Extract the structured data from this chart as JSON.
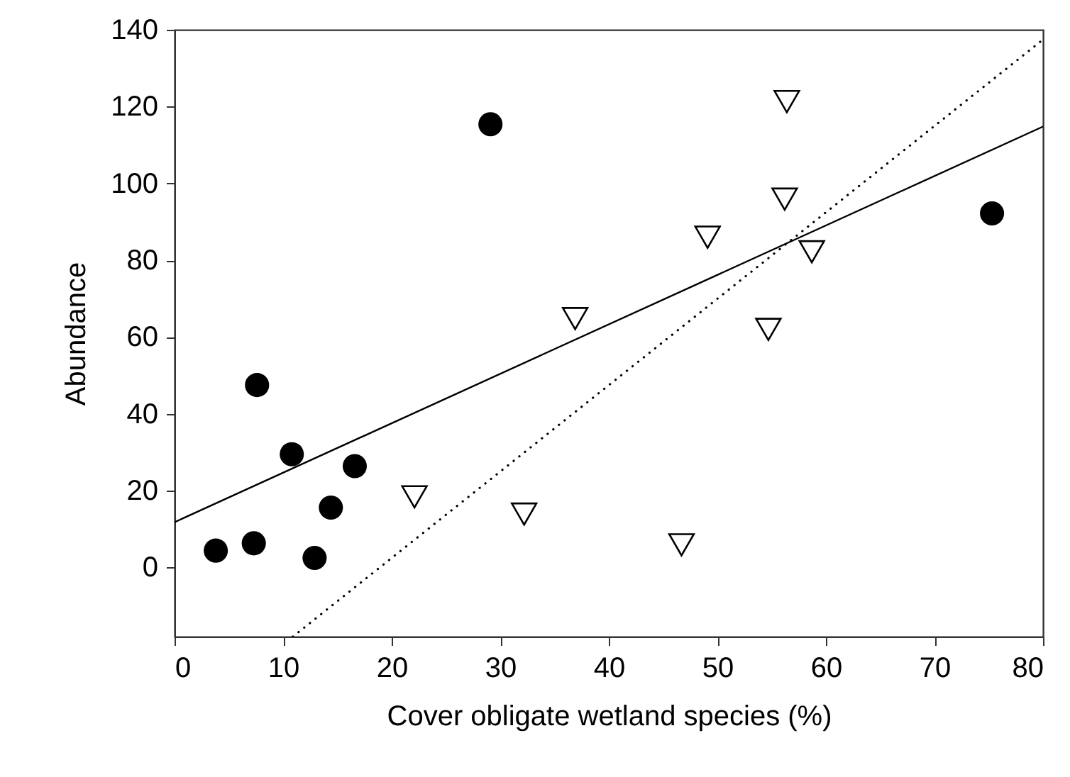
{
  "chart_data": {
    "type": "scatter",
    "xlabel": "Cover obligate wetland species (%)",
    "ylabel": "Abundance",
    "xlim": [
      0,
      80
    ],
    "xticks": [
      0,
      10,
      20,
      30,
      40,
      50,
      60,
      70,
      80
    ],
    "ylim": [
      -18,
      140
    ],
    "yticks": [
      0,
      20,
      40,
      60,
      80,
      100,
      120,
      140
    ],
    "grid": false,
    "series": [
      {
        "marker": "circle",
        "color": "#000000",
        "x": [
          3.8,
          7.3,
          7.6,
          10.8,
          12.9,
          14.4,
          16.6,
          29.1,
          75.3
        ],
        "values": [
          4.4,
          6.3,
          47.5,
          29.5,
          2.5,
          15.6,
          26.4,
          115.4,
          92.2
        ]
      },
      {
        "marker": "triangle",
        "color": "#000000",
        "x": [
          22.1,
          32.2,
          36.9,
          56.4,
          56.2,
          49.1,
          58.7,
          54.7,
          46.7
        ],
        "values": [
          18.4,
          13.9,
          64.8,
          121.3,
          95.9,
          86.0,
          82.2,
          62.0,
          5.9
        ]
      },
      {
        "type": "line",
        "line_style": "solid",
        "color": "#000000",
        "x": [
          0,
          80
        ],
        "values": [
          11.8,
          114.8
        ]
      },
      {
        "type": "line",
        "line_style": "dotted",
        "color": "#000000",
        "x": [
          10.9,
          79.8
        ],
        "values": [
          -18,
          137
        ]
      }
    ]
  }
}
